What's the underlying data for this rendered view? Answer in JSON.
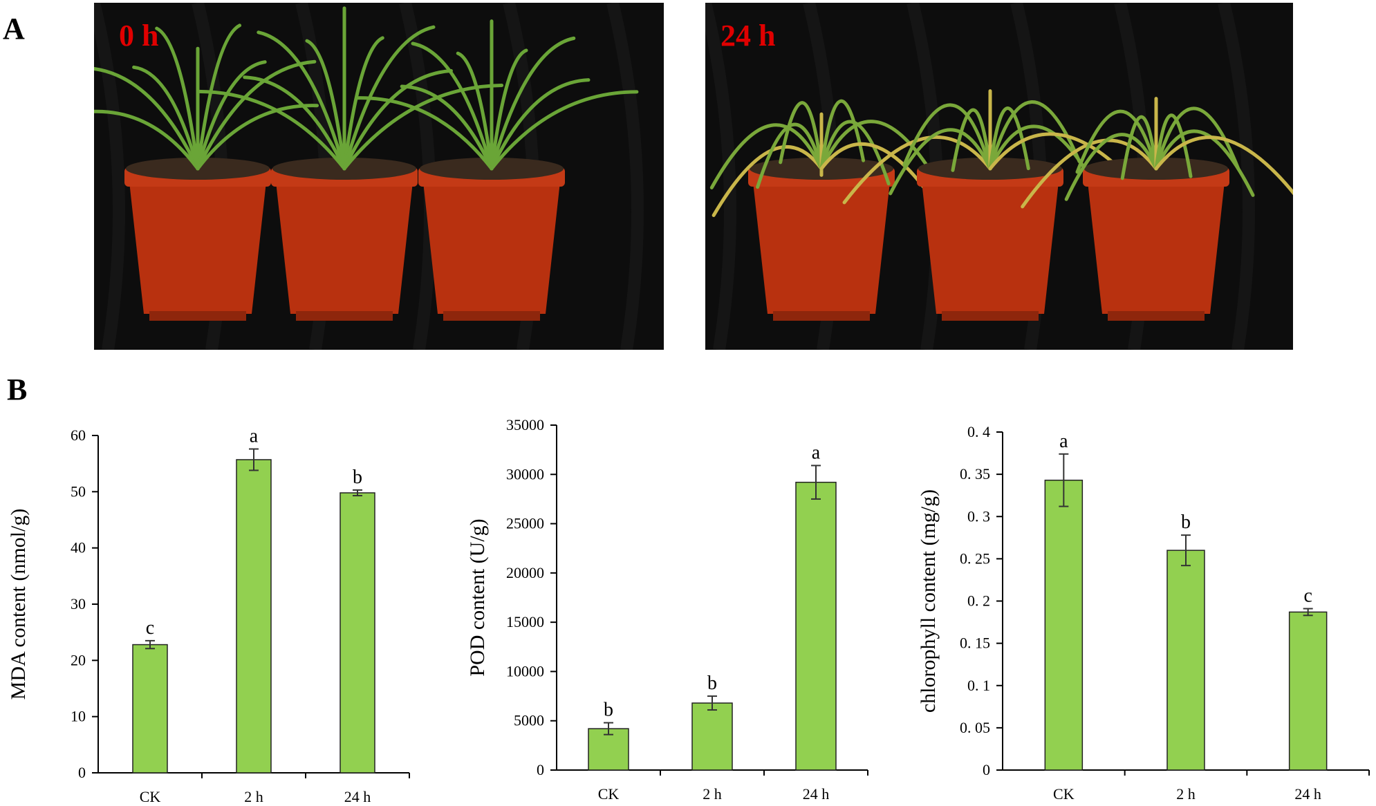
{
  "panel_a": {
    "letter": "A",
    "photos": [
      {
        "label": "0 h",
        "leaf_color": "#6aa537"
      },
      {
        "label": "24 h",
        "leaf_color": "#7aa83a"
      }
    ]
  },
  "panel_b": {
    "letter": "B"
  },
  "colors": {
    "bar_fill": "#92d050",
    "bar_stroke": "#222222",
    "pot": "#b8310f",
    "photo_bg": "#0d0d0d",
    "time_label": "#e00000"
  },
  "chart_data": [
    {
      "type": "bar",
      "title": "",
      "xlabel": "",
      "ylabel": "MDA content (nmol/g)",
      "categories": [
        "CK",
        "2 h",
        "24 h"
      ],
      "values": [
        22.8,
        55.7,
        49.8
      ],
      "errors": [
        0.7,
        1.9,
        0.5
      ],
      "significance": [
        "c",
        "a",
        "b"
      ],
      "ylim": [
        0,
        60
      ],
      "yticks": [
        "0",
        "10",
        "20",
        "30",
        "40",
        "50",
        "60"
      ]
    },
    {
      "type": "bar",
      "title": "",
      "xlabel": "",
      "ylabel": "POD content (U/g)",
      "categories": [
        "CK",
        "2 h",
        "24 h"
      ],
      "values": [
        4200,
        6800,
        29200
      ],
      "errors": [
        600,
        700,
        1700
      ],
      "significance": [
        "b",
        "b",
        "a"
      ],
      "ylim": [
        0,
        35000
      ],
      "yticks": [
        "0",
        "5000",
        "10000",
        "15000",
        "20000",
        "25000",
        "30000",
        "35000"
      ]
    },
    {
      "type": "bar",
      "title": "",
      "xlabel": "",
      "ylabel": "chlorophyll content (mg/g)",
      "categories": [
        "CK",
        "2  h",
        "24  h"
      ],
      "values": [
        0.343,
        0.26,
        0.187
      ],
      "errors": [
        0.031,
        0.018,
        0.004
      ],
      "significance": [
        "a",
        "b",
        "c"
      ],
      "ylim": [
        0,
        0.4
      ],
      "yticks": [
        "0",
        "0. 05",
        "0. 1",
        "0. 15",
        "0. 2",
        "0. 25",
        "0. 3",
        "0. 35",
        "0. 4"
      ]
    }
  ]
}
